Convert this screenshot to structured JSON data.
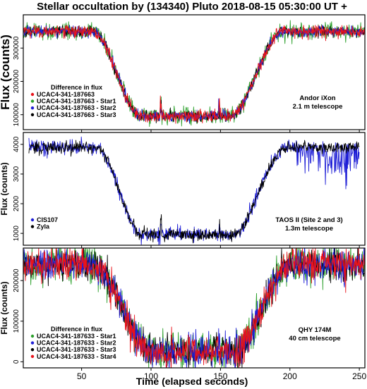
{
  "title": "Stellar occultation by (134340) Pluto    2018-08-15    05:30:00 UT +",
  "xlabel": "Time (elapsed seconds)",
  "xlim": [
    8,
    254
  ],
  "xticks": [
    50,
    100,
    150,
    200,
    250
  ],
  "chart_data": [
    {
      "type": "line",
      "ylabel": "Flux (counts)",
      "ylim": [
        55000,
        400000
      ],
      "yticks": [
        100000,
        200000,
        300000
      ],
      "legend_title": "Difference in flux",
      "legend_position": "bottom-left",
      "annotation": [
        "Andor iXon",
        "2.1 m telescope"
      ],
      "profile": {
        "high": 350000,
        "low": 96000,
        "ingress": [
          58,
          93
        ],
        "egress": [
          157,
          195
        ]
      },
      "series": [
        {
          "name": "UCAC4-341-187663",
          "color": "#e8131b",
          "noise": 9000
        },
        {
          "name": "UCAC4-341-187663 - Star1",
          "color": "#2ca02c",
          "noise": 12000
        },
        {
          "name": "UCAC4-341-187663 - Star2",
          "color": "#1f1fd6",
          "noise": 8000
        },
        {
          "name": "UCAC4-341-187663 - Star3",
          "color": "#000000",
          "noise": 8000
        }
      ],
      "draw_order": [
        1,
        3,
        2,
        0
      ]
    },
    {
      "type": "line",
      "ylabel": "Flux (counts)",
      "ylim": [
        600,
        4400
      ],
      "yticks": [
        1000,
        2000,
        3000,
        4000
      ],
      "legend_title": "",
      "legend_position": "bottom-left",
      "annotation": [
        "TAOS II (Site 2 and 3)",
        "1.3m telescope"
      ],
      "profile": {
        "high": 3900,
        "low": 950,
        "ingress": [
          60,
          94
        ],
        "egress": [
          158,
          198
        ]
      },
      "series": [
        {
          "name": "CIS107",
          "color": "#1f1fd6",
          "noise": 120
        },
        {
          "name": "Zyla",
          "color": "#000000",
          "noise": 100
        }
      ],
      "draw_order": [
        0,
        1
      ]
    },
    {
      "type": "line",
      "ylabel": "Flux (counts)",
      "ylim": [
        -15000,
        280000
      ],
      "yticks": [
        0,
        100000,
        200000
      ],
      "legend_title": "Difference in flux",
      "legend_position": "bottom-left",
      "annotation": [
        "QHY 174M",
        "40 cm telescope"
      ],
      "profile": {
        "high": 240000,
        "low": 25000,
        "ingress": [
          58,
          100
        ],
        "egress": [
          160,
          200
        ]
      },
      "series": [
        {
          "name": "UCAC4-341-187633 - Star1",
          "color": "#2ca02c",
          "noise": 22000
        },
        {
          "name": "UCAC4-341-187633 - Star2",
          "color": "#1f1fd6",
          "noise": 20000
        },
        {
          "name": "UCAC4-341-187633 - Star3",
          "color": "#000000",
          "noise": 18000
        },
        {
          "name": "UCAC4-341-187633 - Star4",
          "color": "#e8131b",
          "noise": 20000
        }
      ],
      "draw_order": [
        0,
        2,
        1,
        3
      ]
    }
  ]
}
